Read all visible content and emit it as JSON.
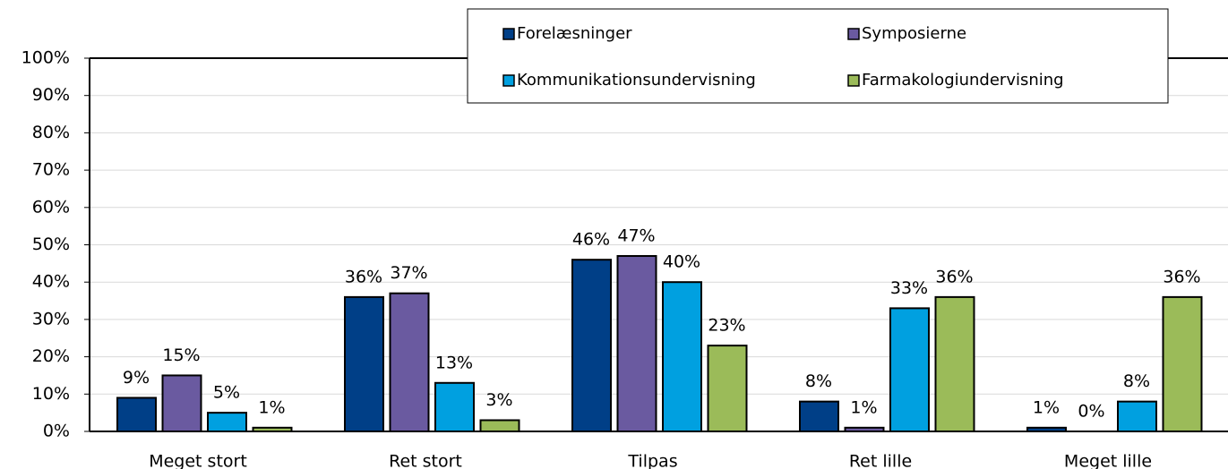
{
  "chart_data": {
    "type": "bar",
    "categories": [
      "Meget stort",
      "Ret stort",
      "Tilpas",
      "Ret lille",
      "Meget lille"
    ],
    "series": [
      {
        "name": "Forelæsninger",
        "color": "#003f87",
        "values": [
          9,
          36,
          46,
          8,
          1
        ],
        "value_labels": [
          "9%",
          "36%",
          "46%",
          "8%",
          "1%"
        ]
      },
      {
        "name": "Symposierne",
        "color": "#6a5aa0",
        "values": [
          15,
          37,
          47,
          1,
          0
        ],
        "value_labels": [
          "15%",
          "37%",
          "47%",
          "1%",
          "0%"
        ]
      },
      {
        "name": "Kommunikationsundervisning",
        "color": "#00a0e0",
        "values": [
          5,
          13,
          40,
          33,
          8
        ],
        "value_labels": [
          "5%",
          "13%",
          "40%",
          "33%",
          "8%"
        ]
      },
      {
        "name": "Farmakologiundervisning",
        "color": "#9bbb59",
        "values": [
          1,
          3,
          23,
          36,
          36
        ],
        "value_labels": [
          "1%",
          "3%",
          "23%",
          "36%",
          "36%"
        ]
      }
    ],
    "ylim": [
      0,
      100
    ],
    "yticks": [
      {
        "value": 0,
        "label": "0%"
      },
      {
        "value": 10,
        "label": "10%"
      },
      {
        "value": 20,
        "label": "20%"
      },
      {
        "value": 30,
        "label": "30%"
      },
      {
        "value": 40,
        "label": "40%"
      },
      {
        "value": 50,
        "label": "50%"
      },
      {
        "value": 60,
        "label": "60%"
      },
      {
        "value": 70,
        "label": "70%"
      },
      {
        "value": 80,
        "label": "80%"
      },
      {
        "value": 90,
        "label": "90%"
      },
      {
        "value": 100,
        "label": "100%"
      }
    ],
    "grid": true,
    "legend": "top-right"
  }
}
